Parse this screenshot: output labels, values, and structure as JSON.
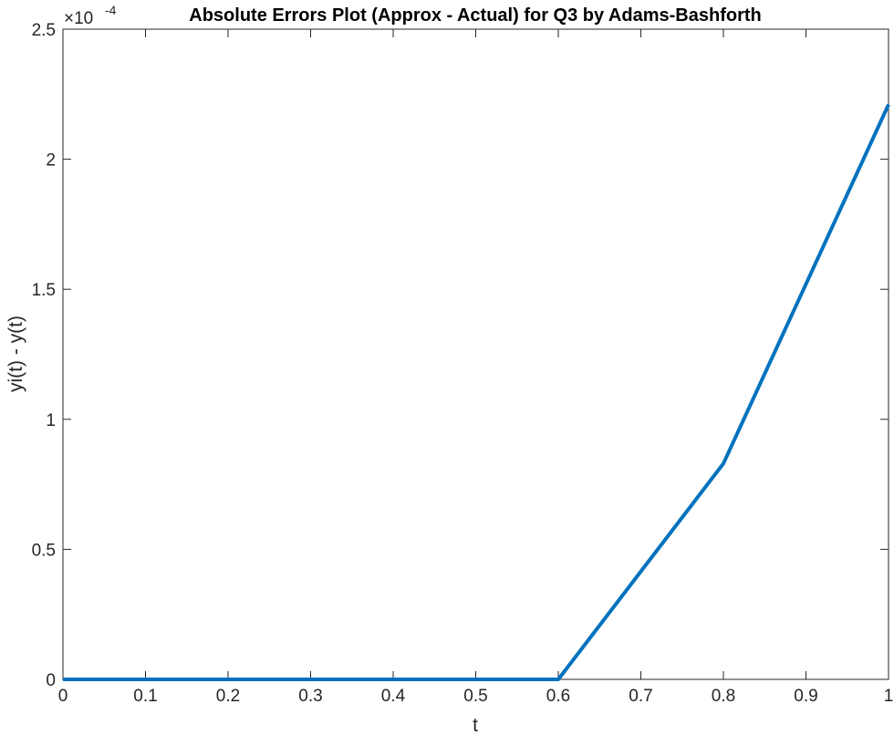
{
  "chart_data": {
    "type": "line",
    "title": "Absolute Errors Plot (Approx - Actual) for Q3 by Adams-Bashforth",
    "xlabel": "t",
    "ylabel": "yi(t) - y(t)",
    "exponent_label": {
      "base": "×10",
      "power": "-4"
    },
    "xlim": [
      0,
      1
    ],
    "ylim": [
      0,
      2.5
    ],
    "x_ticks": [
      "0",
      "0.1",
      "0.2",
      "0.3",
      "0.4",
      "0.5",
      "0.6",
      "0.7",
      "0.8",
      "0.9",
      "1"
    ],
    "y_ticks": [
      "0",
      "0.5",
      "1",
      "1.5",
      "2",
      "2.5"
    ],
    "grid": false,
    "series": [
      {
        "color": "#0072bd",
        "x": [
          0,
          0.2,
          0.4,
          0.6,
          0.8,
          1.0
        ],
        "y": [
          0,
          0,
          0,
          0,
          0.83,
          2.21
        ]
      }
    ]
  }
}
